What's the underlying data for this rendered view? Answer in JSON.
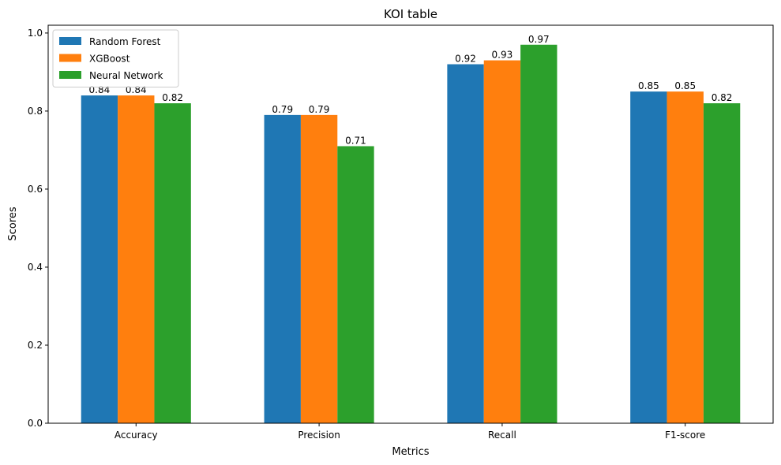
{
  "chart_data": {
    "type": "bar",
    "title": "KOI table",
    "xlabel": "Metrics",
    "ylabel": "Scores",
    "categories": [
      "Accuracy",
      "Precision",
      "Recall",
      "F1-score"
    ],
    "series": [
      {
        "name": "Random Forest",
        "color": "#1f77b4",
        "values": [
          0.84,
          0.79,
          0.92,
          0.85
        ]
      },
      {
        "name": "XGBoost",
        "color": "#ff7f0e",
        "values": [
          0.84,
          0.79,
          0.93,
          0.85
        ]
      },
      {
        "name": "Neural Network",
        "color": "#2ca02c",
        "values": [
          0.82,
          0.71,
          0.97,
          0.82
        ]
      }
    ],
    "ylim": [
      0,
      1.02
    ],
    "yticks": [
      "0.0",
      "0.2",
      "0.4",
      "0.6",
      "0.8",
      "1.0"
    ],
    "grid": false,
    "legend": "top-left"
  }
}
